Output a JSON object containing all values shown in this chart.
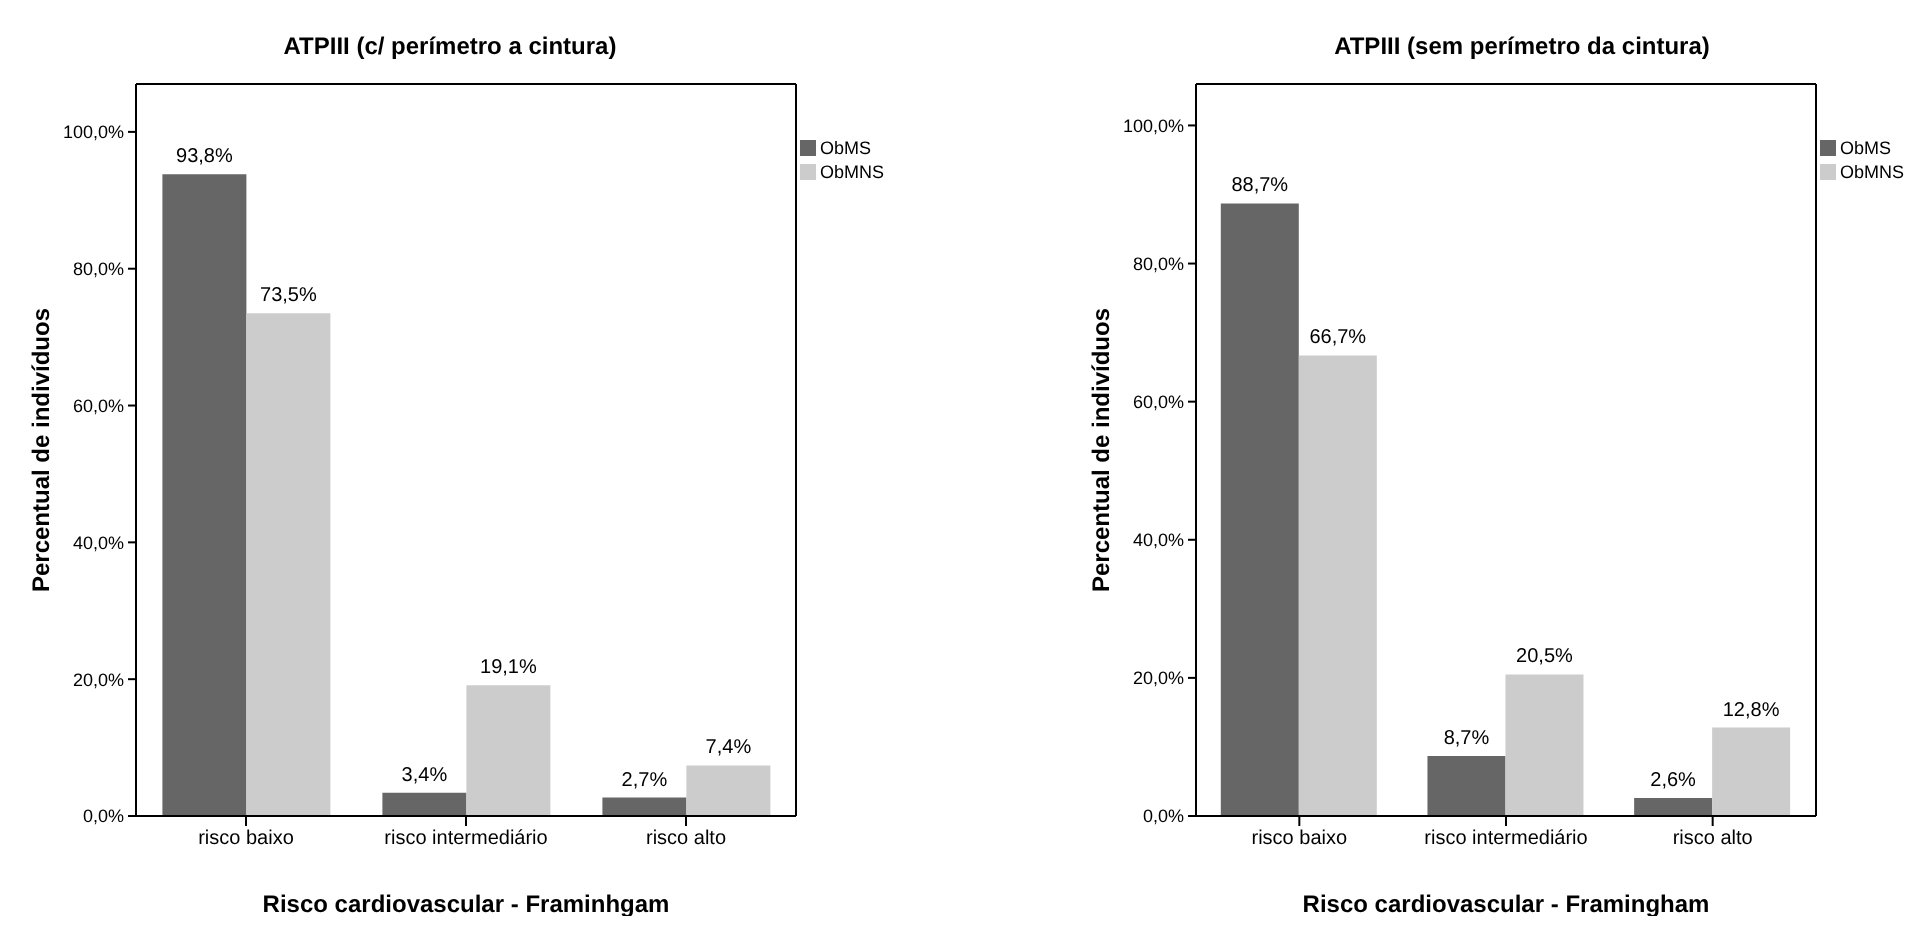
{
  "chart_data": [
    {
      "type": "bar",
      "title": "ATPIII (c/ perímetro a cintura)",
      "xlabel": "Risco cardiovascular - Framinhgam",
      "ylabel": "Percentual de indivíduos",
      "categories": [
        "risco baixo",
        "risco intermediário",
        "risco alto"
      ],
      "series": [
        {
          "name": "ObMS",
          "color": "#666666",
          "values": [
            93.8,
            3.4,
            2.7
          ],
          "value_labels": [
            "93,8%",
            "3,4%",
            "2,7%"
          ]
        },
        {
          "name": "ObMNS",
          "color": "#cccccc",
          "values": [
            73.5,
            19.1,
            7.4
          ],
          "value_labels": [
            "73,5%",
            "19,1%",
            "7,4%"
          ]
        }
      ],
      "ylim": [
        0,
        107
      ],
      "yticks": [
        {
          "value": 0,
          "label": "0,0%"
        },
        {
          "value": 20,
          "label": "20,0%"
        },
        {
          "value": 40,
          "label": "40,0%"
        },
        {
          "value": 60,
          "label": "60,0%"
        },
        {
          "value": 80,
          "label": "80,0%"
        },
        {
          "value": 100,
          "label": "100,0%"
        }
      ],
      "grid": false,
      "legend": "top right"
    },
    {
      "type": "bar",
      "title": "ATPIII (sem perímetro da cintura)",
      "xlabel": "Risco cardiovascular - Framingham",
      "ylabel": "Percentual de indivíduos",
      "categories": [
        "risco baixo",
        "risco intermediário",
        "risco alto"
      ],
      "series": [
        {
          "name": "ObMS",
          "color": "#666666",
          "values": [
            88.7,
            8.7,
            2.6
          ],
          "value_labels": [
            "88,7%",
            "8,7%",
            "2,6%"
          ]
        },
        {
          "name": "ObMNS",
          "color": "#cccccc",
          "values": [
            66.7,
            20.5,
            12.8
          ],
          "value_labels": [
            "66,7%",
            "20,5%",
            "12,8%"
          ]
        }
      ],
      "ylim": [
        0,
        106
      ],
      "yticks": [
        {
          "value": 0,
          "label": "0,0%"
        },
        {
          "value": 20,
          "label": "20,0%"
        },
        {
          "value": 40,
          "label": "40,0%"
        },
        {
          "value": 60,
          "label": "60,0%"
        },
        {
          "value": 80,
          "label": "80,0%"
        },
        {
          "value": 100,
          "label": "100,0%"
        }
      ],
      "grid": false,
      "legend": "top right"
    }
  ]
}
